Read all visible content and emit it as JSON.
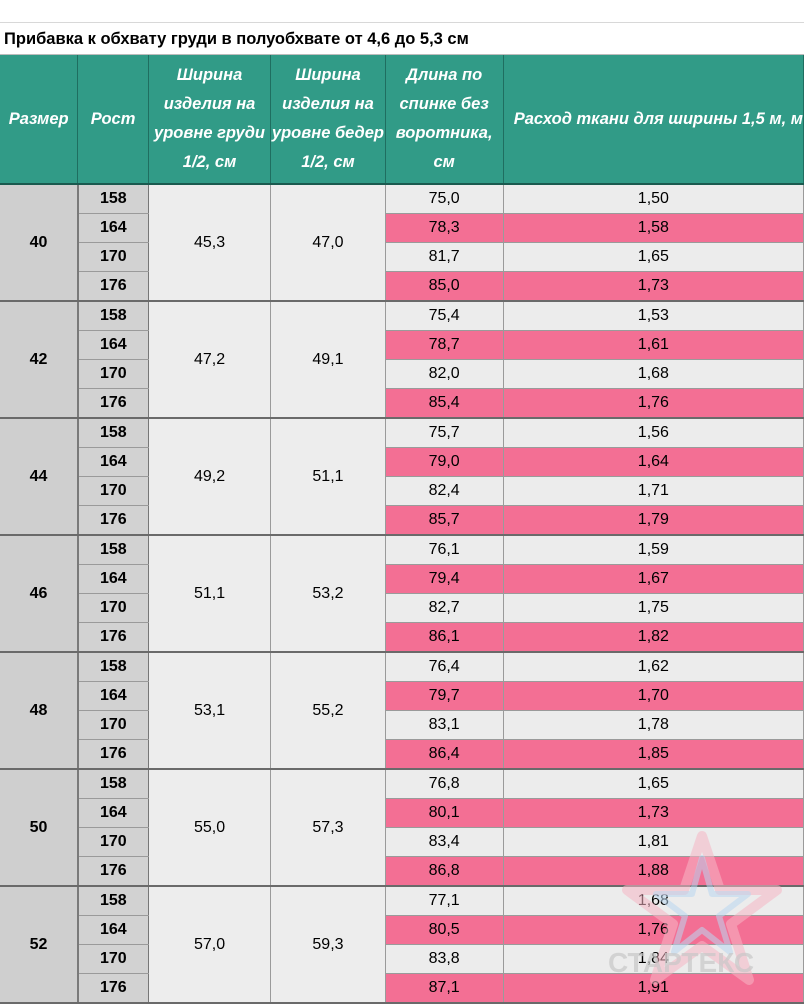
{
  "title": "Прибавка к обхвату груди в полуобхвате от 4,6 до 5,3  см",
  "headers": {
    "size": "Размер",
    "height": "Рост",
    "chest": "Ширина изделия на уровне груди 1/2, см",
    "hips": "Ширина изделия на уровне бедер 1/2, см",
    "length": "Длина по спинке без воротника, см",
    "fabric": "Расход ткани для ширины 1,5 м, м"
  },
  "groups": [
    {
      "size": "40",
      "chest": "45,3",
      "hips": "47,0",
      "rows": [
        {
          "h": "158",
          "len": "75,0",
          "fab": "1,50"
        },
        {
          "h": "164",
          "len": "78,3",
          "fab": "1,58"
        },
        {
          "h": "170",
          "len": "81,7",
          "fab": "1,65"
        },
        {
          "h": "176",
          "len": "85,0",
          "fab": "1,73"
        }
      ]
    },
    {
      "size": "42",
      "chest": "47,2",
      "hips": "49,1",
      "rows": [
        {
          "h": "158",
          "len": "75,4",
          "fab": "1,53"
        },
        {
          "h": "164",
          "len": "78,7",
          "fab": "1,61"
        },
        {
          "h": "170",
          "len": "82,0",
          "fab": "1,68"
        },
        {
          "h": "176",
          "len": "85,4",
          "fab": "1,76"
        }
      ]
    },
    {
      "size": "44",
      "chest": "49,2",
      "hips": "51,1",
      "rows": [
        {
          "h": "158",
          "len": "75,7",
          "fab": "1,56"
        },
        {
          "h": "164",
          "len": "79,0",
          "fab": "1,64"
        },
        {
          "h": "170",
          "len": "82,4",
          "fab": "1,71"
        },
        {
          "h": "176",
          "len": "85,7",
          "fab": "1,79"
        }
      ]
    },
    {
      "size": "46",
      "chest": "51,1",
      "hips": "53,2",
      "rows": [
        {
          "h": "158",
          "len": "76,1",
          "fab": "1,59"
        },
        {
          "h": "164",
          "len": "79,4",
          "fab": "1,67"
        },
        {
          "h": "170",
          "len": "82,7",
          "fab": "1,75"
        },
        {
          "h": "176",
          "len": "86,1",
          "fab": "1,82"
        }
      ]
    },
    {
      "size": "48",
      "chest": "53,1",
      "hips": "55,2",
      "rows": [
        {
          "h": "158",
          "len": "76,4",
          "fab": "1,62"
        },
        {
          "h": "164",
          "len": "79,7",
          "fab": "1,70"
        },
        {
          "h": "170",
          "len": "83,1",
          "fab": "1,78"
        },
        {
          "h": "176",
          "len": "86,4",
          "fab": "1,85"
        }
      ]
    },
    {
      "size": "50",
      "chest": "55,0",
      "hips": "57,3",
      "rows": [
        {
          "h": "158",
          "len": "76,8",
          "fab": "1,65"
        },
        {
          "h": "164",
          "len": "80,1",
          "fab": "1,73"
        },
        {
          "h": "170",
          "len": "83,4",
          "fab": "1,81"
        },
        {
          "h": "176",
          "len": "86,8",
          "fab": "1,88"
        }
      ]
    },
    {
      "size": "52",
      "chest": "57,0",
      "hips": "59,3",
      "rows": [
        {
          "h": "158",
          "len": "77,1",
          "fab": "1,68"
        },
        {
          "h": "164",
          "len": "80,5",
          "fab": "1,76"
        },
        {
          "h": "170",
          "len": "83,8",
          "fab": "1,84"
        },
        {
          "h": "176",
          "len": "87,1",
          "fab": "1,91"
        }
      ]
    }
  ],
  "watermark": "СТАРТЕКС",
  "colors": {
    "header_bg": "#319b87",
    "highlight": "#f36f94",
    "cell_bg": "#ececec",
    "size_bg": "#cfcfcf"
  }
}
